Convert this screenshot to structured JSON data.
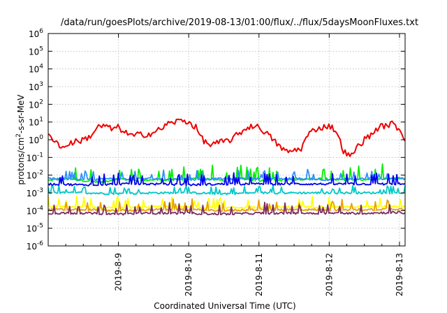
{
  "chart_data": {
    "type": "line",
    "title": "/data/run/goesPlots/archive/2019-08-13/01:00/flux/../flux/5daysMoonFluxes.txt",
    "xlabel": "Coordinated Universal Time (UTC)",
    "ylabel_parts": [
      "protons/cm",
      "2",
      "-s-sr-MeV"
    ],
    "y_scale": "log",
    "ylim_exp": [
      -6,
      6
    ],
    "y_ticks": [
      {
        "base": "10",
        "exp": "-6",
        "value": -6
      },
      {
        "base": "10",
        "exp": "-5",
        "value": -5
      },
      {
        "base": "10",
        "exp": "-4",
        "value": -4
      },
      {
        "base": "10",
        "exp": "-3",
        "value": -3
      },
      {
        "base": "10",
        "exp": "-2",
        "value": -2
      },
      {
        "base": "10",
        "exp": "-1",
        "value": -1
      },
      {
        "base": "10",
        "exp": "0",
        "value": 0
      },
      {
        "base": "10",
        "exp": "1",
        "value": 1
      },
      {
        "base": "10",
        "exp": "2",
        "value": 2
      },
      {
        "base": "10",
        "exp": "3",
        "value": 3
      },
      {
        "base": "10",
        "exp": "4",
        "value": 4
      },
      {
        "base": "10",
        "exp": "5",
        "value": 5
      },
      {
        "base": "10",
        "exp": "6",
        "value": 6
      }
    ],
    "xlim_days": [
      8.0,
      13.08
    ],
    "x_ticks": [
      {
        "label": "2019-8-9",
        "day": 9
      },
      {
        "label": "2019-8-10",
        "day": 10
      },
      {
        "label": "2019-8-11",
        "day": 11
      },
      {
        "label": "2019-8-12",
        "day": 12
      },
      {
        "label": "2019-8-13",
        "day": 13
      }
    ],
    "grid": true,
    "legend": "none",
    "series": [
      {
        "color": "#00ee00",
        "style": "spiky",
        "x_days": [
          8.0,
          8.25,
          8.5,
          8.75,
          9.0,
          9.25,
          9.5,
          9.75,
          10.0,
          10.25,
          10.5,
          10.75,
          11.0,
          11.25,
          11.5,
          11.75,
          12.0,
          12.25,
          12.5,
          12.75,
          13.0,
          13.08
        ],
        "log10_flux": [
          -2.3,
          -2.2,
          -2.3,
          -2.4,
          -2.2,
          -2.3,
          -2.25,
          -2.3,
          -2.2,
          -2.2,
          -2.3,
          -2.2,
          -2.3,
          -2.3,
          -2.25,
          -2.2,
          -2.2,
          -2.3,
          -2.25,
          -2.2,
          -2.2,
          -2.2
        ],
        "spike_amp": 0.8
      },
      {
        "color": "#00c8c8",
        "style": "spiky",
        "x_days": [
          8.0,
          8.5,
          9.0,
          9.5,
          10.0,
          10.5,
          11.0,
          11.5,
          12.0,
          12.5,
          13.0,
          13.08
        ],
        "log10_flux": [
          -3.0,
          -3.0,
          -3.05,
          -3.0,
          -3.0,
          -3.05,
          -3.0,
          -3.0,
          -3.0,
          -3.0,
          -3.0,
          -3.0
        ],
        "spike_amp": 0.4
      },
      {
        "color": "#2f8fff",
        "style": "spiky",
        "x_days": [
          8.0,
          8.5,
          9.0,
          9.5,
          10.0,
          10.5,
          11.0,
          11.5,
          12.0,
          12.5,
          13.0,
          13.08
        ],
        "log10_flux": [
          -2.2,
          -2.25,
          -2.2,
          -2.2,
          -2.25,
          -2.2,
          -2.2,
          -2.2,
          -2.25,
          -2.2,
          -2.2,
          -2.2
        ],
        "spike_amp": 0.5
      },
      {
        "color": "#0000ee",
        "style": "spiky",
        "x_days": [
          8.0,
          8.5,
          9.0,
          9.5,
          10.0,
          10.5,
          11.0,
          11.5,
          12.0,
          12.5,
          13.0,
          13.08
        ],
        "log10_flux": [
          -2.5,
          -2.55,
          -2.5,
          -2.5,
          -2.55,
          -2.5,
          -2.5,
          -2.5,
          -2.5,
          -2.5,
          -2.5,
          -2.5
        ],
        "spike_amp": 0.6
      },
      {
        "color": "#ffff00",
        "style": "spiky",
        "x_days": [
          8.0,
          8.5,
          9.0,
          9.5,
          10.0,
          10.5,
          11.0,
          11.5,
          12.0,
          12.5,
          13.0,
          13.08
        ],
        "log10_flux": [
          -3.8,
          -3.8,
          -3.85,
          -3.8,
          -3.8,
          -3.85,
          -3.8,
          -3.8,
          -3.8,
          -3.8,
          -3.75,
          -3.8
        ],
        "spike_amp": 0.6
      },
      {
        "color": "#e8a000",
        "style": "spiky",
        "x_days": [
          8.0,
          8.5,
          9.0,
          9.5,
          10.0,
          10.5,
          11.0,
          11.5,
          12.0,
          12.5,
          13.0,
          13.08
        ],
        "log10_flux": [
          -3.95,
          -3.95,
          -4.0,
          -3.95,
          -3.95,
          -4.0,
          -3.95,
          -3.95,
          -3.95,
          -3.95,
          -3.9,
          -3.95
        ],
        "spike_amp": 0.55
      },
      {
        "color": "#7a2a60",
        "style": "spiky",
        "x_days": [
          8.0,
          8.5,
          9.0,
          9.5,
          10.0,
          10.5,
          11.0,
          11.5,
          12.0,
          12.5,
          13.0,
          13.08
        ],
        "log10_flux": [
          -4.15,
          -4.15,
          -4.2,
          -4.15,
          -4.15,
          -4.2,
          -4.15,
          -4.15,
          -4.15,
          -4.15,
          -4.1,
          -4.15
        ],
        "spike_amp": 0.6
      },
      {
        "color": "#ee0000",
        "style": "smooth",
        "x_days": [
          8.0,
          8.1,
          8.2,
          8.3,
          8.4,
          8.5,
          8.6,
          8.7,
          8.8,
          8.9,
          9.0,
          9.1,
          9.2,
          9.3,
          9.4,
          9.5,
          9.6,
          9.7,
          9.8,
          9.9,
          10.0,
          10.1,
          10.2,
          10.3,
          10.4,
          10.5,
          10.6,
          10.7,
          10.8,
          10.9,
          11.0,
          11.1,
          11.2,
          11.3,
          11.4,
          11.5,
          11.6,
          11.7,
          11.8,
          11.9,
          12.0,
          12.1,
          12.2,
          12.3,
          12.4,
          12.5,
          12.6,
          12.7,
          12.8,
          12.9,
          13.0,
          13.08
        ],
        "log10_flux": [
          0.2,
          0.0,
          -0.5,
          -0.2,
          -0.1,
          0.0,
          0.2,
          0.7,
          0.8,
          0.6,
          0.7,
          0.4,
          0.2,
          0.3,
          0.3,
          0.4,
          0.6,
          0.9,
          1.0,
          1.1,
          1.0,
          0.7,
          0.0,
          -0.3,
          -0.2,
          -0.1,
          0.0,
          0.3,
          0.6,
          0.8,
          0.7,
          0.4,
          0.0,
          -0.4,
          -0.7,
          -0.6,
          -0.5,
          0.3,
          0.6,
          0.7,
          0.8,
          0.5,
          -0.6,
          -1.0,
          -0.4,
          0.0,
          0.3,
          0.7,
          0.8,
          0.9,
          0.6,
          0.0
        ]
      }
    ]
  }
}
